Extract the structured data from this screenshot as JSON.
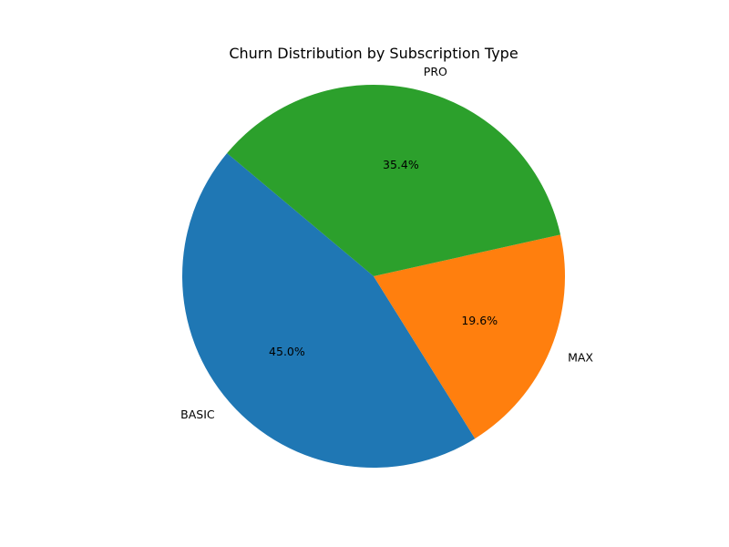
{
  "chart_data": {
    "type": "pie",
    "title": "Churn Distribution by Subscription Type",
    "slices": [
      {
        "label": "BASIC",
        "value": 45.0,
        "pct_label": "45.0%",
        "color": "#1f77b4"
      },
      {
        "label": "MAX",
        "value": 19.6,
        "pct_label": "19.6%",
        "color": "#ff7f0e"
      },
      {
        "label": "PRO",
        "value": 35.4,
        "pct_label": "35.4%",
        "color": "#2ca02c"
      }
    ],
    "start_angle_deg": 140,
    "direction": "counterclockwise",
    "legend": "none"
  }
}
